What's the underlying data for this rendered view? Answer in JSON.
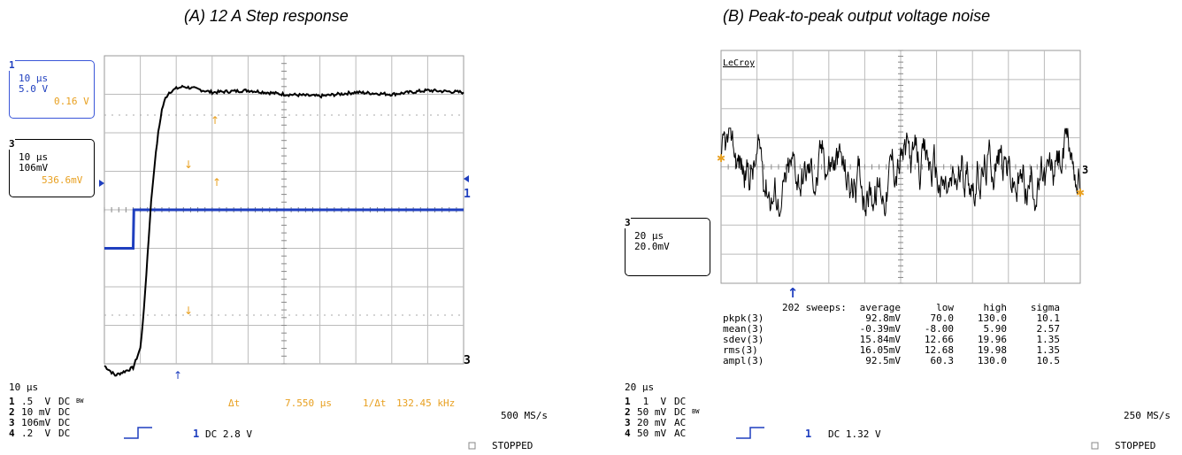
{
  "left": {
    "title": "(A) 12 A Step response",
    "box1": {
      "badge": "1",
      "line1": "10 μs",
      "line2": "5.0 V",
      "line3": "0.16 V"
    },
    "box3": {
      "badge": "3",
      "line1": "10 μs",
      "line2": "106mV",
      "line3": "536.6mV"
    },
    "timebase": "10 μs",
    "channels": [
      {
        "num": "1",
        "volts": ".5  V",
        "coupling": "DC",
        "bw": "BW"
      },
      {
        "num": "2",
        "volts": "10 mV",
        "coupling": "DC",
        "bw": ""
      },
      {
        "num": "3",
        "volts": "106mV",
        "coupling": "DC",
        "bw": ""
      },
      {
        "num": "4",
        "volts": ".2  V",
        "coupling": "DC",
        "bw": ""
      }
    ],
    "trigger": {
      "ch": "1",
      "text": "DC 2.8 V"
    },
    "sample_rate": "500 MS/s",
    "status": "STOPPED",
    "measure": {
      "dt_label": "Δt",
      "dt_value": "7.550 μs",
      "freq_label": "1/Δt",
      "freq_value": "132.45 kHz"
    },
    "marker_1": "1",
    "marker_3": "3"
  },
  "right": {
    "title": "(B) Peak-to-peak output voltage noise",
    "brand": "LeCroy",
    "box3": {
      "badge": "3",
      "line1": "20 μs",
      "line2": "20.0mV"
    },
    "timebase": "20 μs",
    "channels": [
      {
        "num": "1",
        "volts": " 1  V",
        "coupling": "DC",
        "bw": ""
      },
      {
        "num": "2",
        "volts": "50 mV",
        "coupling": "DC",
        "bw": "BW"
      },
      {
        "num": "3",
        "volts": "20 mV",
        "coupling": "AC",
        "bw": ""
      },
      {
        "num": "4",
        "volts": "50 mV",
        "coupling": "AC",
        "bw": ""
      }
    ],
    "trigger": {
      "ch": "1",
      "text": "DC 1.32 V"
    },
    "sample_rate": "250 MS/s",
    "status": "STOPPED",
    "marker_3": "3",
    "stats": {
      "sweeps": "202 sweeps:",
      "headers": [
        "average",
        "low",
        "high",
        "sigma"
      ],
      "rows": [
        {
          "label": "pkpk(3)",
          "average": "92.8mV",
          "low": "70.0",
          "high": "130.0",
          "sigma": "10.1"
        },
        {
          "label": "mean(3)",
          "average": "-0.39mV",
          "low": "-8.00",
          "high": "5.90",
          "sigma": "2.57"
        },
        {
          "label": "sdev(3)",
          "average": "15.84mV",
          "low": "12.66",
          "high": "19.96",
          "sigma": "1.35"
        },
        {
          "label": "rms(3)",
          "average": "16.05mV",
          "low": "12.68",
          "high": "19.98",
          "sigma": "1.35"
        },
        {
          "label": "ampl(3)",
          "average": "92.5mV",
          "low": "60.3",
          "high": "130.0",
          "sigma": "10.5"
        }
      ]
    }
  },
  "chart_data": [
    {
      "type": "line",
      "title": "(A) 12 A Step response",
      "xlabel": "",
      "ylabel": "",
      "x_unit": "μs",
      "x_per_div": 10,
      "xlim": [
        0,
        100
      ],
      "grid": true,
      "series": [
        {
          "name": "",
          "color": "#1f3fbf",
          "x": [
            0,
            8.0,
            8.2,
            100
          ],
          "y": [
            -1.0,
            -1.0,
            0.0,
            0.0
          ]
        },
        {
          "name": "",
          "color": "#000000",
          "x": [
            0,
            3,
            8,
            10,
            11,
            12,
            13,
            14,
            15,
            16,
            17,
            18,
            20,
            22,
            25,
            30,
            40,
            50,
            60,
            70,
            80,
            90,
            100
          ],
          "y": [
            -4.05,
            -4.3,
            -4.1,
            -3.6,
            -2.6,
            -1.2,
            0.2,
            1.2,
            2.0,
            2.6,
            2.9,
            3.05,
            3.15,
            3.2,
            3.15,
            3.05,
            3.1,
            3.0,
            2.95,
            3.05,
            3.0,
            3.1,
            3.05
          ]
        }
      ],
      "annotations": {
        "dt": "7.550 μs",
        "inv_dt": "132.45 kHz"
      }
    },
    {
      "type": "line",
      "title": "(B) Peak-to-peak output voltage noise",
      "xlabel": "",
      "ylabel": "",
      "x_unit": "μs",
      "x_per_div": 20,
      "xlim": [
        0,
        200
      ],
      "y_unit": "mV",
      "y_per_div": 20,
      "grid": true,
      "series": [
        {
          "name": "",
          "color": "#000000",
          "y_amplitude_pkpk_mV": 92.8
        }
      ]
    }
  ]
}
